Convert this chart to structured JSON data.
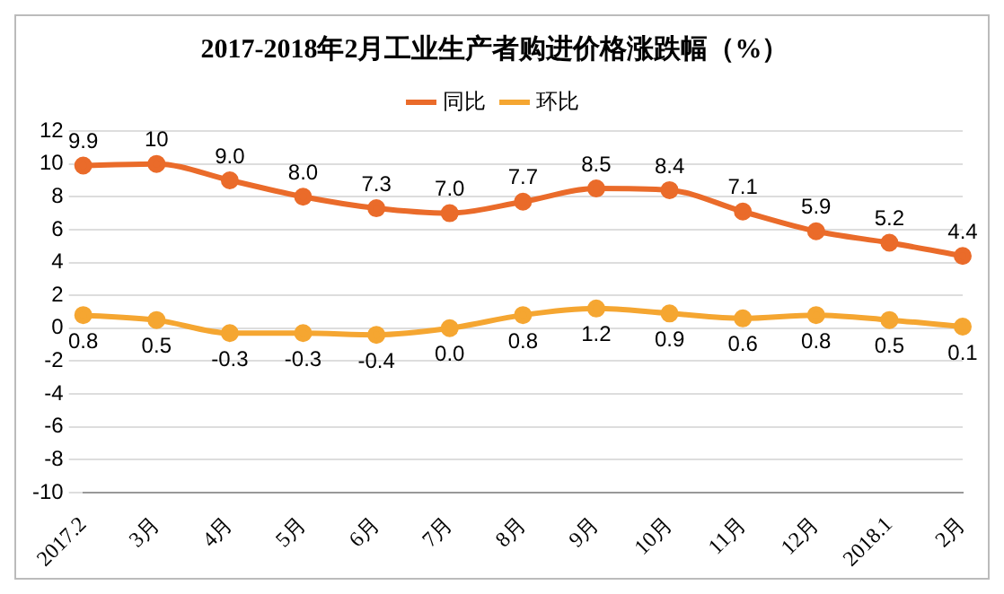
{
  "chart_data": {
    "type": "line",
    "title": "2017-2018年2月工业生产者购进价格涨跌幅（%）",
    "categories": [
      "2017.2",
      "3月",
      "4月",
      "5月",
      "6月",
      "7月",
      "8月",
      "9月",
      "10月",
      "11月",
      "12月",
      "2018.1",
      "2月"
    ],
    "series": [
      {
        "name": "同比",
        "color": "#ea6b2a",
        "values": [
          9.9,
          10,
          9.0,
          8.0,
          7.3,
          7.0,
          7.7,
          8.5,
          8.4,
          7.1,
          5.9,
          5.2,
          4.4
        ],
        "value_labels": [
          "9.9",
          "10",
          "9.0",
          "8.0",
          "7.3",
          "7.0",
          "7.7",
          "8.5",
          "8.4",
          "7.1",
          "5.9",
          "5.2",
          "4.4"
        ]
      },
      {
        "name": "环比",
        "color": "#f5a631",
        "values": [
          0.8,
          0.5,
          -0.3,
          -0.3,
          -0.4,
          0.0,
          0.8,
          1.2,
          0.9,
          0.6,
          0.8,
          0.5,
          0.1
        ],
        "value_labels": [
          "0.8",
          "0.5",
          "-0.3",
          "-0.3",
          "-0.4",
          "0.0",
          "0.8",
          "1.2",
          "0.9",
          "0.6",
          "0.8",
          "0.5",
          "0.1"
        ]
      }
    ],
    "ylim": [
      -10,
      12
    ],
    "yticks": [
      -10,
      -8,
      -6,
      -4,
      -2,
      0,
      2,
      4,
      6,
      8,
      10,
      12
    ],
    "grid": "y",
    "legend": "top",
    "marker": "circle",
    "line_style": "solid"
  }
}
